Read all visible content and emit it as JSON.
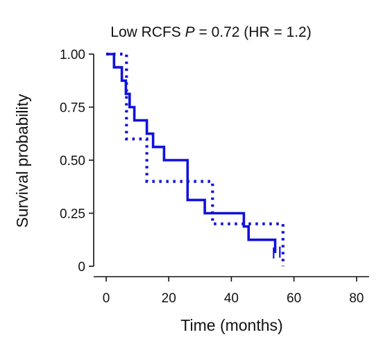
{
  "chart_data": {
    "type": "line",
    "title": {
      "prefix": "Low RCFS ",
      "p_symbol": "P",
      "rest": " = 0.72 (HR = 1.2)"
    },
    "xlabel": "Time (months)",
    "ylabel": "Survival probability",
    "xlim": [
      0,
      80
    ],
    "ylim": [
      0,
      1
    ],
    "x_ticks": [
      0,
      20,
      40,
      60,
      80
    ],
    "x_tick_labels": [
      "0",
      "20",
      "40",
      "60",
      "80"
    ],
    "y_ticks": [
      0,
      0.25,
      0.5,
      0.75,
      1.0
    ],
    "y_tick_labels": [
      "0",
      "0.25",
      "0.50",
      "0.75",
      "1.00"
    ],
    "grid": false,
    "legend": "none",
    "step": true,
    "series": [
      {
        "style": "solid",
        "color": "#1111dd",
        "x": [
          0,
          2.5,
          5,
          6.3,
          7.5,
          9,
          13,
          15,
          18.5,
          26,
          31.5,
          44,
          45.5,
          54
        ],
        "y": [
          1.0,
          0.9375,
          0.875,
          0.8125,
          0.75,
          0.6875,
          0.625,
          0.5625,
          0.5,
          0.3125,
          0.25,
          0.1875,
          0.125,
          0.0625
        ],
        "censored": [
          {
            "x": 53.5,
            "y": 0.0625
          }
        ]
      },
      {
        "style": "dotted",
        "color": "#1111dd",
        "x": [
          0,
          4,
          6.5,
          13,
          34,
          56.5
        ],
        "y": [
          1.0,
          1.0,
          0.6,
          0.4,
          0.2,
          0.0
        ],
        "censored": [
          {
            "x": 55.5,
            "y": 0.0667
          }
        ]
      }
    ]
  }
}
